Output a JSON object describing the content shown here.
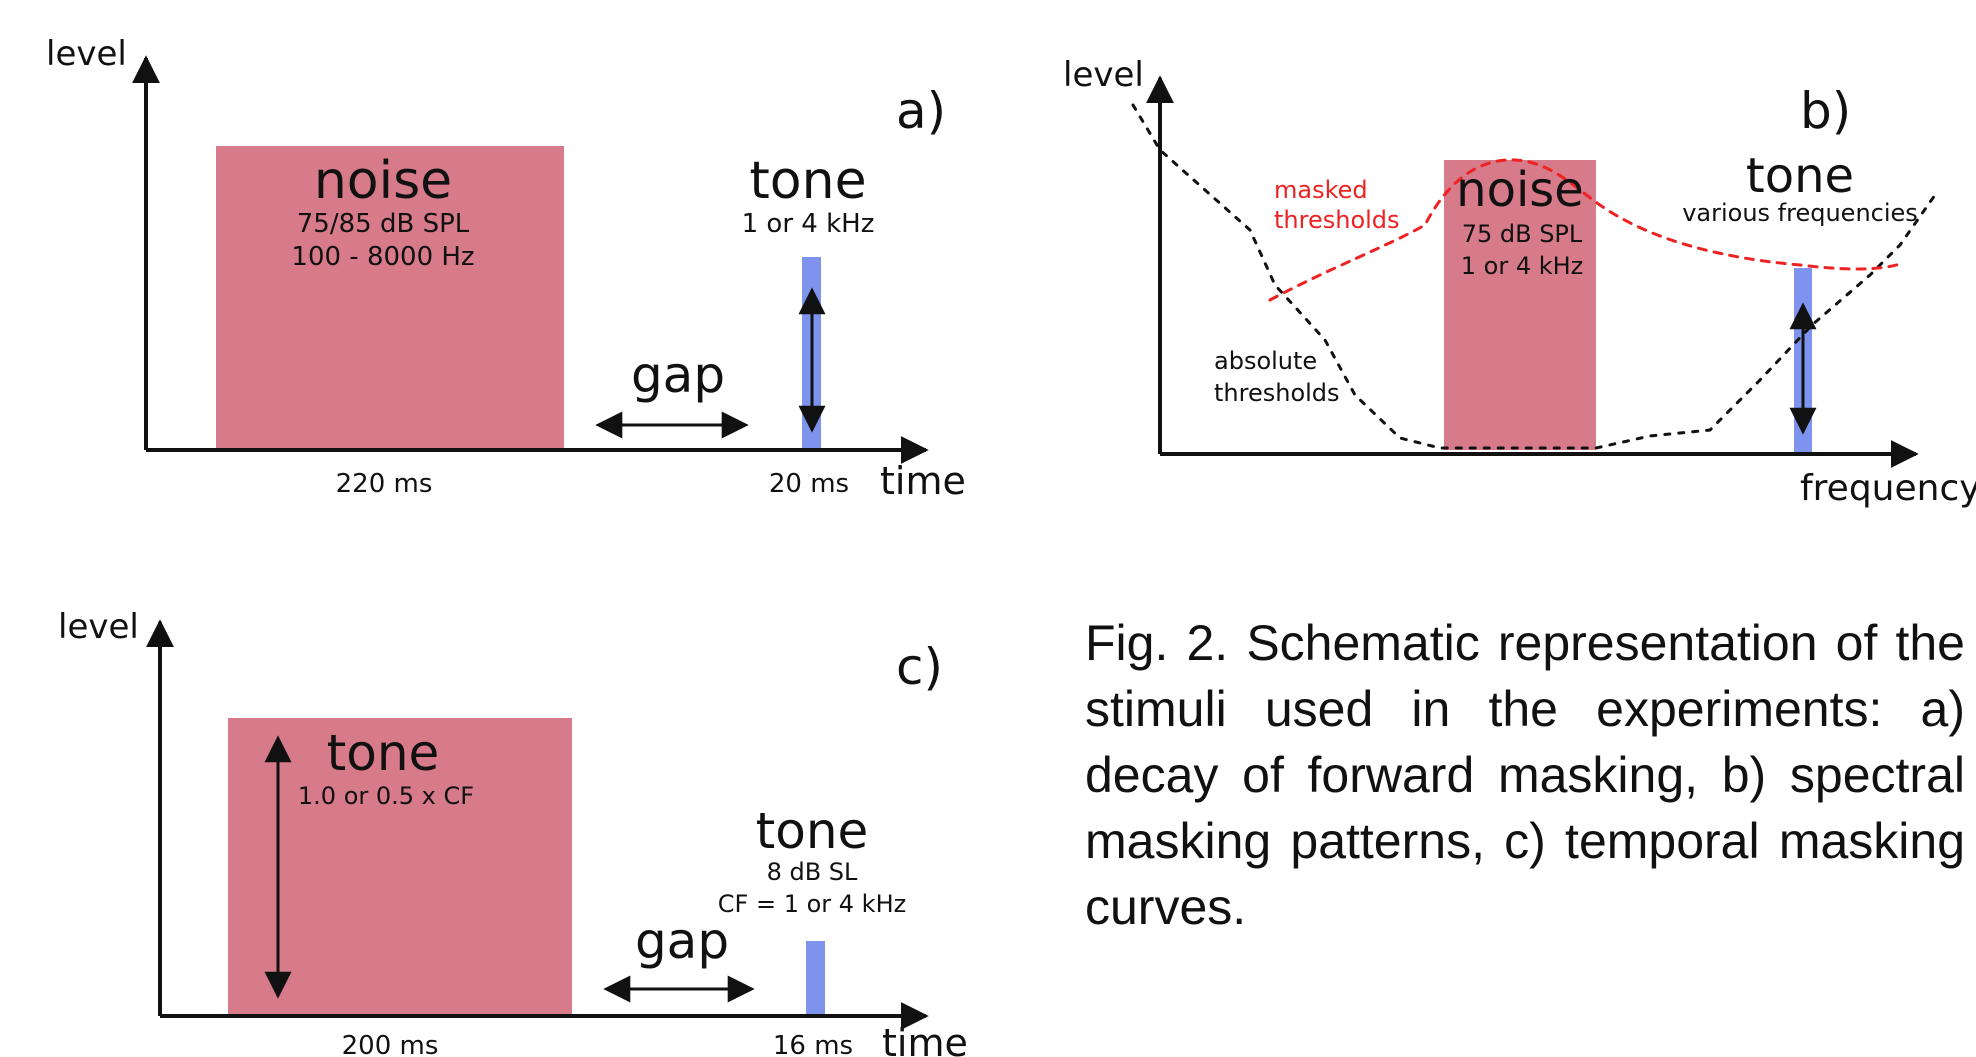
{
  "panel_a": {
    "label": "a)",
    "y_axis": "level",
    "x_axis": "time",
    "noise_title": "noise",
    "noise_level": "75/85 dB SPL",
    "noise_band": "100 - 8000 Hz",
    "noise_duration": "220 ms",
    "tone_title": "tone",
    "tone_freq": "1 or 4 kHz",
    "tone_duration": "20 ms",
    "gap_label": "gap"
  },
  "panel_b": {
    "label": "b)",
    "y_axis": "level",
    "x_axis": "frequency",
    "noise_title": "noise",
    "noise_level": "75 dB SPL",
    "noise_freq": "1 or 4 kHz",
    "tone_title": "tone",
    "tone_freq": "various frequencies",
    "masked_line1": "masked",
    "masked_line2": "thresholds",
    "absolute_line1": "absolute",
    "absolute_line2": "thresholds",
    "colors": {
      "masked": "#ee2222",
      "absolute": "#111111"
    }
  },
  "panel_c": {
    "label": "c)",
    "y_axis": "level",
    "x_axis": "time",
    "masker_title": "tone",
    "masker_freq": "1.0 or 0.5 x CF",
    "masker_duration": "200 ms",
    "probe_title": "tone",
    "probe_level": "8 dB SL",
    "probe_cf": "CF = 1 or 4 kHz",
    "probe_duration": "16 ms",
    "gap_label": "gap"
  },
  "caption": "Fig. 2. Schematic representation of the stimuli used in the experiments: a) decay of forward masking, b) spectral masking patterns, c) temporal masking curves.",
  "colors": {
    "noise": "#d77a8a",
    "tone": "#7e93ee",
    "axis": "#111111"
  }
}
